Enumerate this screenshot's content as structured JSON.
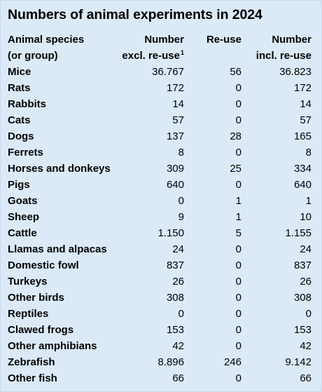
{
  "title": "Numbers of animal experiments in 2024",
  "headers": {
    "species_line1": "Animal species",
    "species_line2": "(or group)",
    "excl_line1": "Number",
    "excl_line2": "excl. re-use",
    "excl_footnote": "1",
    "reuse_line1": "Re-use",
    "incl_line1": "Number",
    "incl_line2": "incl. re-use"
  },
  "rows": [
    {
      "species": "Mice",
      "excl": "36.767",
      "reuse": "56",
      "incl": "36.823"
    },
    {
      "species": "Rats",
      "excl": "172",
      "reuse": "0",
      "incl": "172"
    },
    {
      "species": "Rabbits",
      "excl": "14",
      "reuse": "0",
      "incl": "14"
    },
    {
      "species": "Cats",
      "excl": "57",
      "reuse": "0",
      "incl": "57"
    },
    {
      "species": "Dogs",
      "excl": "137",
      "reuse": "28",
      "incl": "165"
    },
    {
      "species": "Ferrets",
      "excl": "8",
      "reuse": "0",
      "incl": "8"
    },
    {
      "species": "Horses and donkeys",
      "excl": "309",
      "reuse": "25",
      "incl": "334"
    },
    {
      "species": "Pigs",
      "excl": "640",
      "reuse": "0",
      "incl": "640"
    },
    {
      "species": "Goats",
      "excl": "0",
      "reuse": "1",
      "incl": "1"
    },
    {
      "species": "Sheep",
      "excl": "9",
      "reuse": "1",
      "incl": "10"
    },
    {
      "species": "Cattle",
      "excl": "1.150",
      "reuse": "5",
      "incl": "1.155"
    },
    {
      "species": "Llamas and alpacas",
      "excl": "24",
      "reuse": "0",
      "incl": "24"
    },
    {
      "species": "Domestic fowl",
      "excl": "837",
      "reuse": "0",
      "incl": "837"
    },
    {
      "species": "Turkeys",
      "excl": "26",
      "reuse": "0",
      "incl": "26"
    },
    {
      "species": "Other birds",
      "excl": "308",
      "reuse": "0",
      "incl": "308"
    },
    {
      "species": "Reptiles",
      "excl": "0",
      "reuse": "0",
      "incl": "0"
    },
    {
      "species": "Clawed frogs",
      "excl": "153",
      "reuse": "0",
      "incl": "153"
    },
    {
      "species": "Other amphibians",
      "excl": "42",
      "reuse": "0",
      "incl": "42"
    },
    {
      "species": "Zebrafish",
      "excl": "8.896",
      "reuse": "246",
      "incl": "9.142"
    },
    {
      "species": "Other fish",
      "excl": "66",
      "reuse": "0",
      "incl": "66"
    }
  ]
}
